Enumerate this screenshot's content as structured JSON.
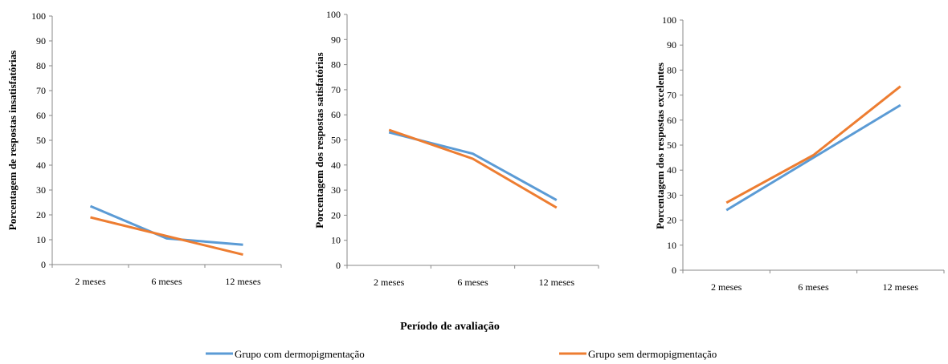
{
  "figure": {
    "xlabel": "Período de avaliação",
    "legend": [
      {
        "name": "Grupo com dermopigmentação",
        "color": "#5b9bd5"
      },
      {
        "name": "Grupo sem dermopigmentação",
        "color": "#ed7d31"
      }
    ]
  },
  "chart_data": [
    {
      "type": "line",
      "categories": [
        "2 meses",
        "6 meses",
        "12 meses"
      ],
      "ylabel": "Porcentagem de respostas insatisfatórias",
      "ylim": [
        0,
        100
      ],
      "yticks": [
        "0",
        "10",
        "20",
        "30",
        "40",
        "50",
        "60",
        "70",
        "80",
        "90",
        "100"
      ],
      "series": [
        {
          "name": "Grupo com dermopigmentação",
          "color": "#5b9bd5",
          "values": [
            23.5,
            10.5,
            8
          ]
        },
        {
          "name": "Grupo sem dermopigmentação",
          "color": "#ed7d31",
          "values": [
            19,
            11.5,
            4
          ]
        }
      ]
    },
    {
      "type": "line",
      "categories": [
        "2 meses",
        "6 meses",
        "12 meses"
      ],
      "ylabel": "Porcentagem dos respostas satisfatórias",
      "ylim": [
        0,
        100
      ],
      "yticks": [
        "0",
        "10",
        "20",
        "30",
        "40",
        "50",
        "60",
        "70",
        "80",
        "90",
        "100"
      ],
      "series": [
        {
          "name": "Grupo com dermopigmentação",
          "color": "#5b9bd5",
          "values": [
            53,
            44.5,
            26
          ]
        },
        {
          "name": "Grupo sem dermopigmentação",
          "color": "#ed7d31",
          "values": [
            54,
            42.5,
            23
          ]
        }
      ]
    },
    {
      "type": "line",
      "categories": [
        "2 meses",
        "6 meses",
        "12 meses"
      ],
      "ylabel": "Porcentagem dos respostas excelentes",
      "ylim": [
        0,
        100
      ],
      "yticks": [
        "0",
        "10",
        "20",
        "30",
        "40",
        "50",
        "60",
        "70",
        "80",
        "90",
        "100"
      ],
      "series": [
        {
          "name": "Grupo com dermopigmentação",
          "color": "#5b9bd5",
          "values": [
            24,
            45,
            66
          ]
        },
        {
          "name": "Grupo sem dermopigmentação",
          "color": "#ed7d31",
          "values": [
            27,
            46,
            73.5
          ]
        }
      ]
    }
  ]
}
